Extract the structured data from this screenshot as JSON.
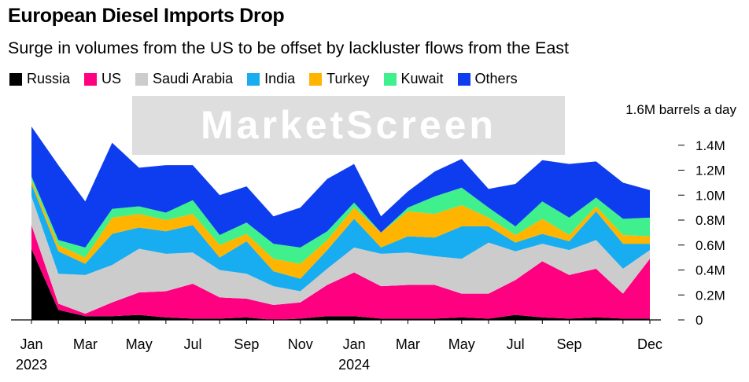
{
  "header": {
    "title": "European Diesel Imports Drop",
    "subtitle": "Surge in volumes from the US to be offset by lackluster flows from the East"
  },
  "watermark": "MarketScreen",
  "chart_data": {
    "type": "area",
    "stacked": true,
    "title": "European Diesel Imports Drop",
    "subtitle": "Surge in volumes from the US to be offset by lackluster flows from the East",
    "unit_label": "1.6M barrels a day",
    "ylim": [
      0,
      1.6
    ],
    "y_ticks": [
      0,
      0.2,
      0.4,
      0.6,
      0.8,
      1.0,
      1.2,
      1.4
    ],
    "y_tick_labels": [
      "0",
      "0.2M",
      "0.4M",
      "0.6M",
      "0.8M",
      "1.0M",
      "1.2M",
      "1.4M"
    ],
    "x": [
      "Jan 2023",
      "Feb 2023",
      "Mar 2023",
      "Apr 2023",
      "May 2023",
      "Jun 2023",
      "Jul 2023",
      "Aug 2023",
      "Sep 2023",
      "Oct 2023",
      "Nov 2023",
      "Dec 2023",
      "Jan 2024",
      "Feb 2024",
      "Mar 2024",
      "Apr 2024",
      "May 2024",
      "Jun 2024",
      "Jul 2024",
      "Aug 2024",
      "Sep 2024",
      "Oct 2024",
      "Nov 2024",
      "Dec 2024"
    ],
    "x_tick_labels": [
      {
        "index": 0,
        "label": "Jan",
        "sub": "2023"
      },
      {
        "index": 2,
        "label": "Mar"
      },
      {
        "index": 4,
        "label": "May"
      },
      {
        "index": 6,
        "label": "Jul"
      },
      {
        "index": 8,
        "label": "Sep"
      },
      {
        "index": 10,
        "label": "Nov"
      },
      {
        "index": 12,
        "label": "Jan",
        "sub": "2024"
      },
      {
        "index": 14,
        "label": "Mar"
      },
      {
        "index": 16,
        "label": "May"
      },
      {
        "index": 18,
        "label": "Jul"
      },
      {
        "index": 20,
        "label": "Sep"
      },
      {
        "index": 23,
        "label": "Dec"
      }
    ],
    "series": [
      {
        "name": "Russia",
        "color": "#000000",
        "values": [
          0.57,
          0.08,
          0.03,
          0.03,
          0.04,
          0.02,
          0.01,
          0.01,
          0.02,
          0.0,
          0.01,
          0.03,
          0.03,
          0.01,
          0.01,
          0.01,
          0.02,
          0.01,
          0.04,
          0.02,
          0.01,
          0.02,
          0.01,
          0.01
        ]
      },
      {
        "name": "US",
        "color": "#ff0080",
        "values": [
          0.19,
          0.05,
          0.02,
          0.11,
          0.18,
          0.21,
          0.28,
          0.17,
          0.15,
          0.12,
          0.13,
          0.25,
          0.35,
          0.26,
          0.27,
          0.27,
          0.19,
          0.2,
          0.28,
          0.45,
          0.35,
          0.39,
          0.2,
          0.48
        ]
      },
      {
        "name": "Saudi Arabia",
        "color": "#cccccc",
        "values": [
          0.23,
          0.24,
          0.31,
          0.3,
          0.35,
          0.3,
          0.25,
          0.22,
          0.2,
          0.15,
          0.09,
          0.13,
          0.2,
          0.26,
          0.26,
          0.23,
          0.28,
          0.41,
          0.23,
          0.14,
          0.2,
          0.23,
          0.2,
          0.07
        ]
      },
      {
        "name": "India",
        "color": "#17adf0",
        "values": [
          0.1,
          0.18,
          0.09,
          0.25,
          0.17,
          0.18,
          0.22,
          0.1,
          0.26,
          0.12,
          0.1,
          0.15,
          0.23,
          0.05,
          0.13,
          0.15,
          0.26,
          0.13,
          0.07,
          0.08,
          0.07,
          0.23,
          0.2,
          0.05
        ]
      },
      {
        "name": "Turkey",
        "color": "#ffb400",
        "values": [
          0.03,
          0.05,
          0.05,
          0.13,
          0.11,
          0.09,
          0.09,
          0.1,
          0.06,
          0.1,
          0.12,
          0.08,
          0.09,
          0.12,
          0.2,
          0.19,
          0.17,
          0.07,
          0.06,
          0.12,
          0.05,
          0.04,
          0.07,
          0.06
        ]
      },
      {
        "name": "Kuwait",
        "color": "#3ff08c",
        "values": [
          0.03,
          0.04,
          0.08,
          0.07,
          0.06,
          0.06,
          0.11,
          0.08,
          0.09,
          0.12,
          0.13,
          0.07,
          0.04,
          0.0,
          0.03,
          0.14,
          0.14,
          0.08,
          0.07,
          0.14,
          0.14,
          0.07,
          0.13,
          0.15
        ]
      },
      {
        "name": "Others",
        "color": "#0e3df0",
        "values": [
          0.4,
          0.6,
          0.37,
          0.53,
          0.31,
          0.38,
          0.28,
          0.32,
          0.29,
          0.22,
          0.32,
          0.42,
          0.31,
          0.13,
          0.13,
          0.2,
          0.23,
          0.15,
          0.34,
          0.33,
          0.43,
          0.29,
          0.29,
          0.22
        ]
      }
    ]
  }
}
